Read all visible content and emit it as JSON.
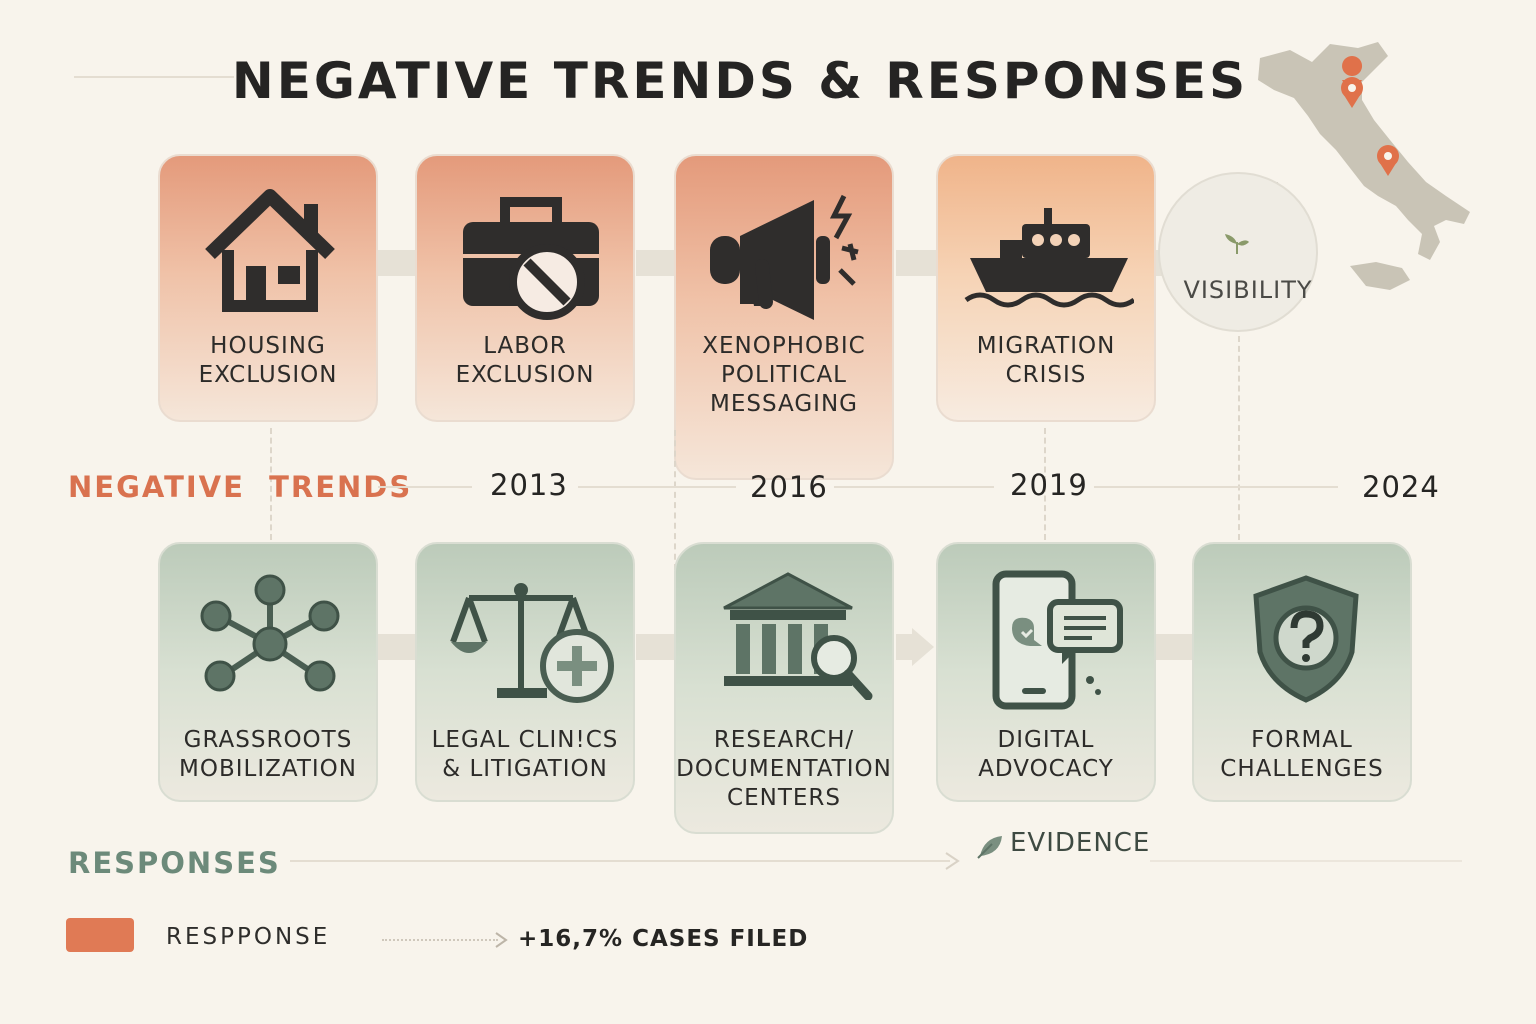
{
  "title": "NEGATIVE TRENDS & RESPONSES",
  "colors": {
    "negative_accent": "#d9724f",
    "response_accent": "#6c8a7a",
    "legend_swatch": "#e07a55"
  },
  "negative_trends": {
    "label": "NEGATIVE  TRENDS",
    "items": [
      {
        "label": "HOUSING\nEXCLUSION",
        "icon": "house-icon"
      },
      {
        "label": "LABOR\nEXCLUSION",
        "icon": "briefcase-blocked-icon"
      },
      {
        "label": "XENOPHOBIC\nPOLITICAL\nMESSAGING",
        "icon": "megaphone-icon"
      },
      {
        "label": "MIGRATION\nCRISIS",
        "icon": "ship-icon"
      }
    ]
  },
  "visibility": {
    "label": "VISIBILITY",
    "icon": "sprout-icon"
  },
  "years": [
    "2013",
    "2016",
    "2019",
    "2024"
  ],
  "responses": {
    "label": "RESPONSES",
    "items": [
      {
        "label": "GRASSROOTS\nMOBILIZATION",
        "icon": "network-icon"
      },
      {
        "label": "LEGAL CLIN!CS\n& LITIGATION",
        "icon": "scales-plus-icon"
      },
      {
        "label": "RESEARCH/\nDOCUMENTATION\nCENTERS",
        "icon": "institution-search-icon"
      },
      {
        "label": "DIGITAL\nADVOCACY",
        "icon": "phone-chat-icon"
      },
      {
        "label": "FORMAL\nCHALLENGES",
        "icon": "shield-question-icon"
      }
    ]
  },
  "evidence": {
    "label": "EVIDENCE",
    "icon": "leaf-icon"
  },
  "legend": {
    "swatch_label": "RESPPONSE",
    "stat": "+16,7% CASES FILED"
  },
  "map": {
    "name": "italy-map-icon"
  }
}
